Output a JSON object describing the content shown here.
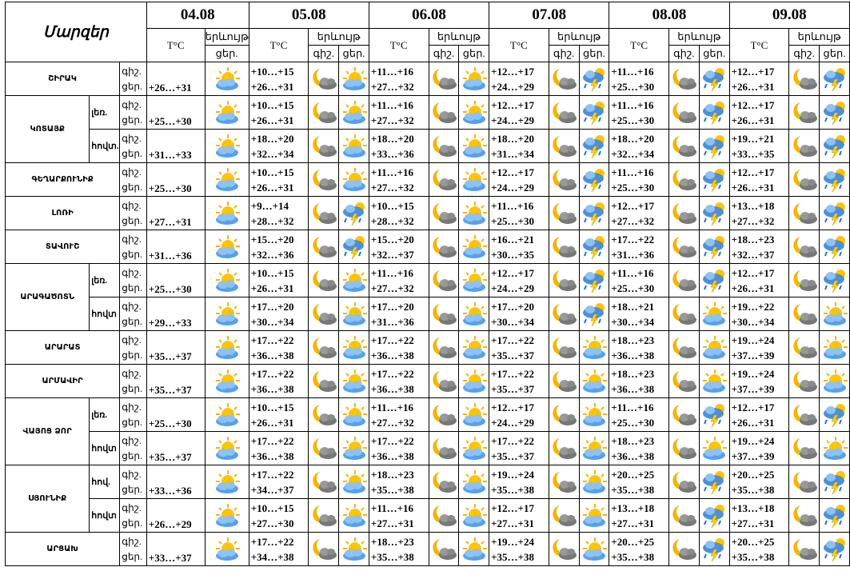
{
  "header": {
    "title": "Մարզեր",
    "dates": [
      "04.08",
      "05.08",
      "06.08",
      "07.08",
      "08.08",
      "09.08"
    ],
    "temp": "T°C",
    "phenomenon": "երևույթ",
    "night": "գիշ.",
    "day": "ցեր."
  },
  "regions": [
    {
      "name": "ՇԻՐԱԿ",
      "rows": [
        {
          "first_day": "+26…+31",
          "days": [
            [
              "+10…+15",
              "+26…+31"
            ],
            [
              "+11…+16",
              "+27…+32"
            ],
            [
              "+12…+17",
              "+24…+29"
            ],
            [
              "+11…+16",
              "+25…+30"
            ],
            [
              "+12…+17",
              "+26…+31"
            ]
          ]
        }
      ]
    },
    {
      "name": "ԿՈՏԱՅՔ",
      "rows": [
        {
          "zone": "լեռ.",
          "first_day": "+25…+30",
          "days": [
            [
              "+10…+15",
              "+26…+31"
            ],
            [
              "+11…+16",
              "+27…+32"
            ],
            [
              "+12…+17",
              "+24…+29"
            ],
            [
              "+11…+16",
              "+25…+30"
            ],
            [
              "+12…+17",
              "+26…+31"
            ]
          ]
        },
        {
          "zone": "հովտ.",
          "first_day": "+31…+33",
          "days": [
            [
              "+18…+20",
              "+32…+34"
            ],
            [
              "+18…+20",
              "+33…+36"
            ],
            [
              "+18…+20",
              "+31…+34"
            ],
            [
              "+18…+20",
              "+32…+34"
            ],
            [
              "+19…+21",
              "+33…+35"
            ]
          ]
        }
      ]
    },
    {
      "name": "ԳԵՂԱՐՔՈՒՆԻՔ",
      "rows": [
        {
          "first_day": "+25…+30",
          "days": [
            [
              "+10…+15",
              "+26…+31"
            ],
            [
              "+11…+16",
              "+27…+32"
            ],
            [
              "+12…+17",
              "+24…+29"
            ],
            [
              "+11…+16",
              "+25…+30"
            ],
            [
              "+12…+17",
              "+26…+31"
            ]
          ]
        }
      ]
    },
    {
      "name": "ԼՈՌԻ",
      "rows": [
        {
          "first_day": "+27…+31",
          "days": [
            [
              "+9…+14",
              "+28…+32"
            ],
            [
              "+10…+15",
              "+28…+32"
            ],
            [
              "+11…+16",
              "+25…+30"
            ],
            [
              "+12…+17",
              "+27…+32"
            ],
            [
              "+13…+18",
              "+27…+32"
            ]
          ]
        }
      ]
    },
    {
      "name": "ՏԱՎՈՒՇ",
      "rows": [
        {
          "first_day": "+31…+36",
          "days": [
            [
              "+15…+20",
              "+32…+36"
            ],
            [
              "+15…+20",
              "+32…+37"
            ],
            [
              "+16…+21",
              "+30…+35"
            ],
            [
              "+17…+22",
              "+31…+36"
            ],
            [
              "+18…+23",
              "+32…+37"
            ]
          ]
        }
      ]
    },
    {
      "name": "ԱՐԱԳԱԾՈՏՆ",
      "rows": [
        {
          "zone": "լեռ.",
          "first_day": "+25…+30",
          "days": [
            [
              "+10…+15",
              "+26…+31"
            ],
            [
              "+11…+16",
              "+27…+32"
            ],
            [
              "+12…+17",
              "+24…+29"
            ],
            [
              "+11…+16",
              "+25…+30"
            ],
            [
              "+12…+17",
              "+26…+31"
            ]
          ]
        },
        {
          "zone": "հովտ",
          "first_day": "+29…+33",
          "days": [
            [
              "+17…+20",
              "+30…+34"
            ],
            [
              "+17…+20",
              "+31…+36"
            ],
            [
              "+17…+20",
              "+30…+34"
            ],
            [
              "+18…+21",
              "+30…+34"
            ],
            [
              "+19…+22",
              "+30…+34"
            ]
          ]
        }
      ]
    },
    {
      "name": "ԱՐԱՐԱՏ",
      "rows": [
        {
          "first_day": "+35…+37",
          "days": [
            [
              "+17…+22",
              "+36…+38"
            ],
            [
              "+17…+22",
              "+36…+38"
            ],
            [
              "+17…+22",
              "+35…+37"
            ],
            [
              "+18…+23",
              "+36…+38"
            ],
            [
              "+19…+24",
              "+37…+39"
            ]
          ]
        }
      ]
    },
    {
      "name": "ԱՐՄԱՎԻՐ",
      "rows": [
        {
          "first_day": "+35…+37",
          "days": [
            [
              "+17…+22",
              "+36…+38"
            ],
            [
              "+17…+22",
              "+36…+38"
            ],
            [
              "+17…+22",
              "+35…+37"
            ],
            [
              "+18…+23",
              "+36…+38"
            ],
            [
              "+19…+24",
              "+37…+39"
            ]
          ]
        }
      ]
    },
    {
      "name": "ՎԱՅՈՑ ՁՈՐ",
      "rows": [
        {
          "zone": "լեռ.",
          "first_day": "+25…+30",
          "days": [
            [
              "+10…+15",
              "+26…+31"
            ],
            [
              "+11…+16",
              "+27…+32"
            ],
            [
              "+12…+17",
              "+24…+29"
            ],
            [
              "+11…+16",
              "+25…+30"
            ],
            [
              "+12…+17",
              "+26…+31"
            ]
          ]
        },
        {
          "zone": "հովտ",
          "first_day": "+35…+37",
          "days": [
            [
              "+17…+22",
              "+36…+38"
            ],
            [
              "+17…+22",
              "+36…+38"
            ],
            [
              "+17…+22",
              "+35…+37"
            ],
            [
              "+18…+23",
              "+36…+38"
            ],
            [
              "+19…+24",
              "+37…+39"
            ]
          ]
        }
      ]
    },
    {
      "name": "ՍՅՈՒՆԻՔ",
      "rows": [
        {
          "zone": "հով.",
          "first_day": "+33…+36",
          "days": [
            [
              "+17…+22",
              "+34…+37"
            ],
            [
              "+18…+23",
              "+35…+38"
            ],
            [
              "+19…+24",
              "+35…+38"
            ],
            [
              "+20…+25",
              "+35…+38"
            ],
            [
              "+20…+25",
              "+35…+38"
            ]
          ]
        },
        {
          "zone": "հովտ",
          "first_day": "+26…+29",
          "days": [
            [
              "+10…+15",
              "+27…+30"
            ],
            [
              "+11…+16",
              "+27…+31"
            ],
            [
              "+12…+17",
              "+27…+31"
            ],
            [
              "+13…+18",
              "+27…+31"
            ],
            [
              "+13…+18",
              "+27…+31"
            ]
          ]
        }
      ]
    },
    {
      "name": "ԱՐՑԱԽ",
      "rows": [
        {
          "first_day": "+33…+37",
          "days": [
            [
              "+17…+22",
              "+34…+38"
            ],
            [
              "+18…+23",
              "+35…+38"
            ],
            [
              "+19…+24",
              "+35…+38"
            ],
            [
              "+20…+25",
              "+35…+38"
            ],
            [
              "+20…+25",
              "+35…+38"
            ]
          ]
        }
      ]
    }
  ]
}
